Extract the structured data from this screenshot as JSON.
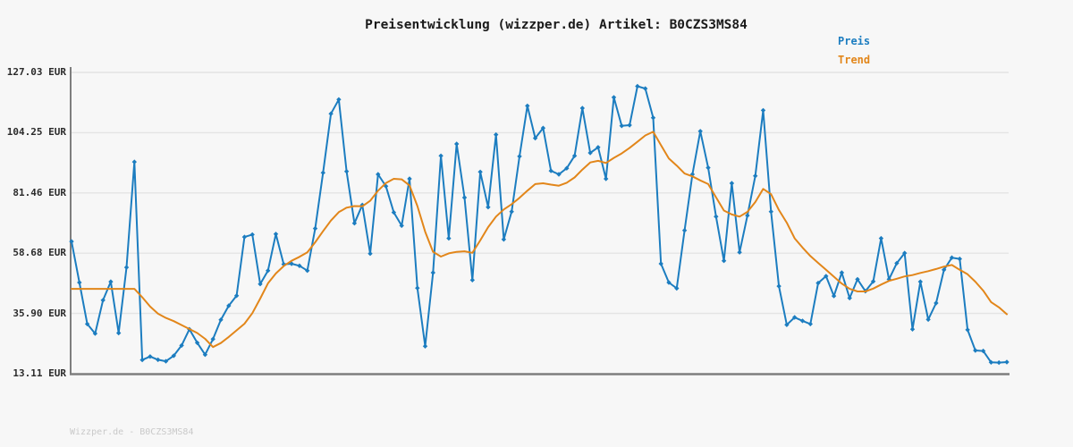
{
  "title": "Preisentwicklung (wizzper.de) Artikel: B0CZS3MS84",
  "footer": "Wizzper.de - B0CZS3MS84",
  "colors": {
    "background": "#f7f7f7",
    "grid": "#e4e4e4",
    "axis": "#7e7e7e",
    "price": "#1c7dc0",
    "trend": "#e2861a",
    "title_text": "#1a1a1a",
    "tick_text": "#2b2b2b",
    "footer_text": "#c9c9c9"
  },
  "chart_data": {
    "type": "line",
    "title": "Preisentwicklung (wizzper.de) Artikel: B0CZS3MS84",
    "xlabel": "",
    "ylabel": "",
    "ylim": [
      13.11,
      127.03
    ],
    "grid": true,
    "legend_position": "top-right",
    "yticks": [
      {
        "label": "127.03 EUR",
        "value": 127.03
      },
      {
        "label": "104.25 EUR",
        "value": 104.25
      },
      {
        "label": "81.46 EUR",
        "value": 81.46
      },
      {
        "label": "58.68 EUR",
        "value": 58.68
      },
      {
        "label": "35.90 EUR",
        "value": 35.9
      },
      {
        "label": "13.11 EUR",
        "value": 13.11
      }
    ],
    "series": [
      {
        "name": "Preis",
        "color": "#1c7dc0",
        "markers": true,
        "values": [
          63.1,
          47.6,
          31.9,
          28.3,
          40.9,
          47.9,
          28.5,
          53.3,
          93.2,
          18.3,
          19.6,
          18.4,
          17.8,
          19.9,
          23.8,
          29.9,
          24.8,
          20.3,
          26.2,
          33.5,
          38.8,
          42.6,
          64.8,
          65.7,
          47.0,
          52.1,
          65.9,
          54.5,
          54.7,
          53.9,
          52.1,
          68.0,
          89.1,
          111.4,
          116.8,
          89.6,
          70.0,
          76.9,
          58.5,
          88.5,
          84.0,
          74.1,
          69.1,
          86.8,
          45.5,
          23.5,
          51.3,
          95.5,
          64.3,
          100.0,
          79.7,
          48.5,
          89.4,
          76.1,
          103.5,
          63.9,
          74.4,
          95.3,
          114.4,
          102.2,
          106.0,
          89.8,
          88.5,
          90.8,
          95.5,
          113.5,
          96.6,
          98.7,
          86.8,
          117.6,
          106.8,
          107.1,
          121.8,
          120.9,
          109.9,
          54.7,
          47.6,
          45.4,
          67.3,
          88.5,
          104.8,
          91.0,
          72.5,
          55.8,
          85.1,
          59.0,
          72.9,
          87.9,
          112.7,
          74.4,
          46.2,
          31.6,
          34.4,
          33.1,
          31.9,
          47.4,
          50.0,
          42.5,
          51.3,
          41.7,
          48.8,
          44.3,
          48.0,
          64.3,
          48.8,
          54.9,
          58.7,
          29.9,
          47.9,
          33.6,
          39.8,
          52.4,
          57.0,
          56.5,
          29.7,
          21.9,
          21.7,
          17.4,
          17.3,
          17.5
        ]
      },
      {
        "name": "Trend",
        "color": "#e2861a",
        "markers": false,
        "values": [
          45.2,
          45.2,
          45.2,
          45.2,
          45.2,
          45.2,
          45.2,
          45.2,
          45.2,
          42.0,
          38.5,
          35.8,
          34.2,
          33.0,
          31.5,
          30.0,
          28.5,
          26.3,
          23.2,
          24.7,
          27.0,
          29.5,
          32.0,
          36.0,
          41.5,
          47.3,
          51.0,
          53.8,
          55.8,
          57.3,
          59.0,
          62.8,
          67.0,
          71.0,
          74.2,
          75.9,
          76.5,
          76.4,
          78.5,
          82.3,
          85.2,
          86.8,
          86.6,
          84.3,
          76.5,
          66.8,
          59.2,
          57.4,
          58.6,
          59.2,
          59.4,
          58.8,
          63.5,
          68.5,
          72.5,
          75.2,
          77.2,
          79.6,
          82.3,
          84.8,
          85.1,
          84.6,
          84.2,
          85.3,
          87.3,
          90.3,
          93.0,
          93.6,
          92.8,
          94.7,
          96.4,
          98.5,
          100.8,
          103.2,
          104.6,
          99.5,
          94.5,
          91.8,
          88.8,
          87.7,
          86.2,
          84.8,
          79.8,
          74.8,
          73.3,
          72.5,
          74.3,
          78.0,
          83.0,
          81.0,
          75.0,
          70.2,
          64.3,
          60.8,
          57.6,
          55.0,
          52.4,
          49.8,
          47.2,
          45.2,
          44.2,
          44.2,
          45.3,
          46.8,
          48.2,
          49.0,
          49.9,
          50.4,
          51.2,
          51.9,
          52.7,
          53.6,
          54.2,
          52.4,
          50.7,
          47.9,
          44.5,
          40.2,
          38.2,
          35.6
        ]
      }
    ]
  }
}
